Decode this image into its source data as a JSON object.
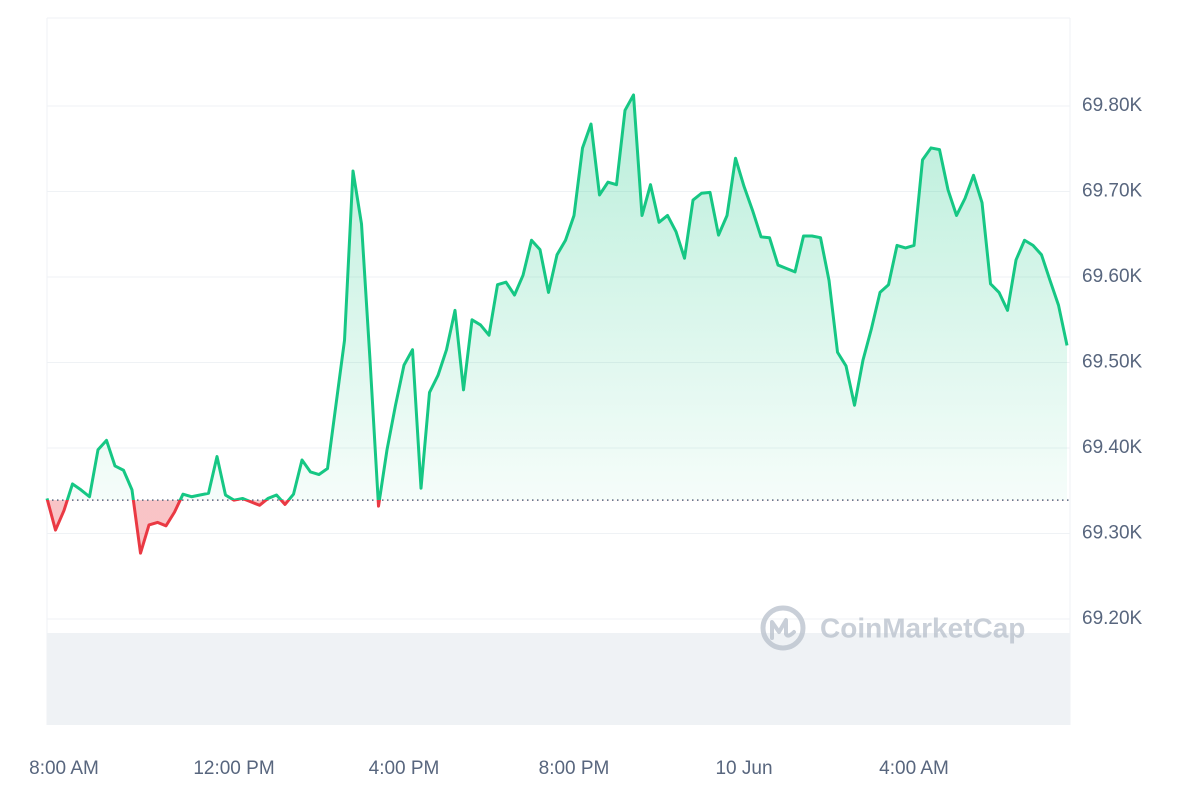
{
  "chart_data": {
    "type": "line",
    "watermark": "CoinMarketCap",
    "color": "#16c784",
    "down_color": "#ea3943",
    "baseline": 69339,
    "grid": true,
    "xlim": [
      7.6,
      31.67
    ],
    "ylim": [
      69076,
      69903
    ],
    "xticks": [
      {
        "value": 8,
        "label": "8:00 AM"
      },
      {
        "value": 12,
        "label": "12:00 PM"
      },
      {
        "value": 16,
        "label": "4:00 PM"
      },
      {
        "value": 20,
        "label": "8:00 PM"
      },
      {
        "value": 24,
        "label": "10 Jun"
      },
      {
        "value": 28,
        "label": "4:00 AM"
      }
    ],
    "yticks": [
      {
        "value": 69200,
        "label": "69.20K"
      },
      {
        "value": 69300,
        "label": "69.30K"
      },
      {
        "value": 69400,
        "label": "69.40K"
      },
      {
        "value": 69500,
        "label": "69.50K"
      },
      {
        "value": 69600,
        "label": "69.60K"
      },
      {
        "value": 69700,
        "label": "69.70K"
      },
      {
        "value": 69800,
        "label": "69.80K"
      }
    ],
    "x": [
      7.6,
      7.8,
      8.0,
      8.2,
      8.4,
      8.6,
      8.8,
      9.0,
      9.2,
      9.4,
      9.6,
      9.8,
      10.0,
      10.2,
      10.4,
      10.6,
      10.8,
      11.0,
      11.2,
      11.4,
      11.6,
      11.8,
      12.0,
      12.2,
      12.4,
      12.6,
      12.8,
      13.0,
      13.2,
      13.4,
      13.6,
      13.8,
      14.0,
      14.2,
      14.4,
      14.6,
      14.8,
      15.0,
      15.2,
      15.4,
      15.6,
      15.8,
      16.0,
      16.2,
      16.4,
      16.6,
      16.8,
      17.0,
      17.2,
      17.4,
      17.6,
      17.8,
      18.0,
      18.2,
      18.4,
      18.6,
      18.8,
      19.0,
      19.2,
      19.4,
      19.6,
      19.8,
      20.0,
      20.2,
      20.4,
      20.6,
      20.8,
      21.0,
      21.2,
      21.4,
      21.6,
      21.8,
      22.0,
      22.2,
      22.4,
      22.6,
      22.8,
      23.0,
      23.2,
      23.4,
      23.6,
      23.8,
      24.0,
      24.2,
      24.4,
      24.6,
      24.8,
      25.0,
      25.2,
      25.4,
      25.6,
      25.8,
      26.0,
      26.2,
      26.4,
      26.6,
      26.8,
      27.0,
      27.2,
      27.4,
      27.6,
      27.8,
      28.0,
      28.2,
      28.4,
      28.6,
      28.8,
      29.0,
      29.2,
      29.4,
      29.6,
      29.8,
      30.0,
      30.2,
      30.4,
      30.6,
      30.8,
      31.0,
      31.2,
      31.4,
      31.6
    ],
    "values": [
      69341,
      69304,
      69327,
      69358,
      69351,
      69343,
      69398,
      69409,
      69379,
      69374,
      69351,
      69277,
      69310,
      69313,
      69309,
      69325,
      69346,
      69343,
      69345,
      69347,
      69390,
      69345,
      69339,
      69341,
      69337,
      69333,
      69341,
      69345,
      69334,
      69346,
      69386,
      69372,
      69369,
      69376,
      69451,
      69526,
      69724,
      69662,
      69503,
      69332,
      69398,
      69450,
      69497,
      69515,
      69353,
      69465,
      69485,
      69515,
      69561,
      69468,
      69550,
      69544,
      69532,
      69591,
      69594,
      69579,
      69602,
      69643,
      69632,
      69582,
      69626,
      69643,
      69672,
      69751,
      69779,
      69696,
      69711,
      69708,
      69795,
      69813,
      69672,
      69708,
      69664,
      69672,
      69653,
      69622,
      69690,
      69698,
      69699,
      69649,
      69672,
      69739,
      69706,
      69678,
      69647,
      69646,
      69614,
      69610,
      69606,
      69648,
      69648,
      69646,
      69596,
      69512,
      69496,
      69450,
      69503,
      69540,
      69582,
      69591,
      69637,
      69634,
      69637,
      69737,
      69751,
      69749,
      69702,
      69672,
      69692,
      69719,
      69687,
      69592,
      69582,
      69561,
      69620,
      69643,
      69637,
      69626,
      69596,
      69567,
      69520
    ]
  }
}
